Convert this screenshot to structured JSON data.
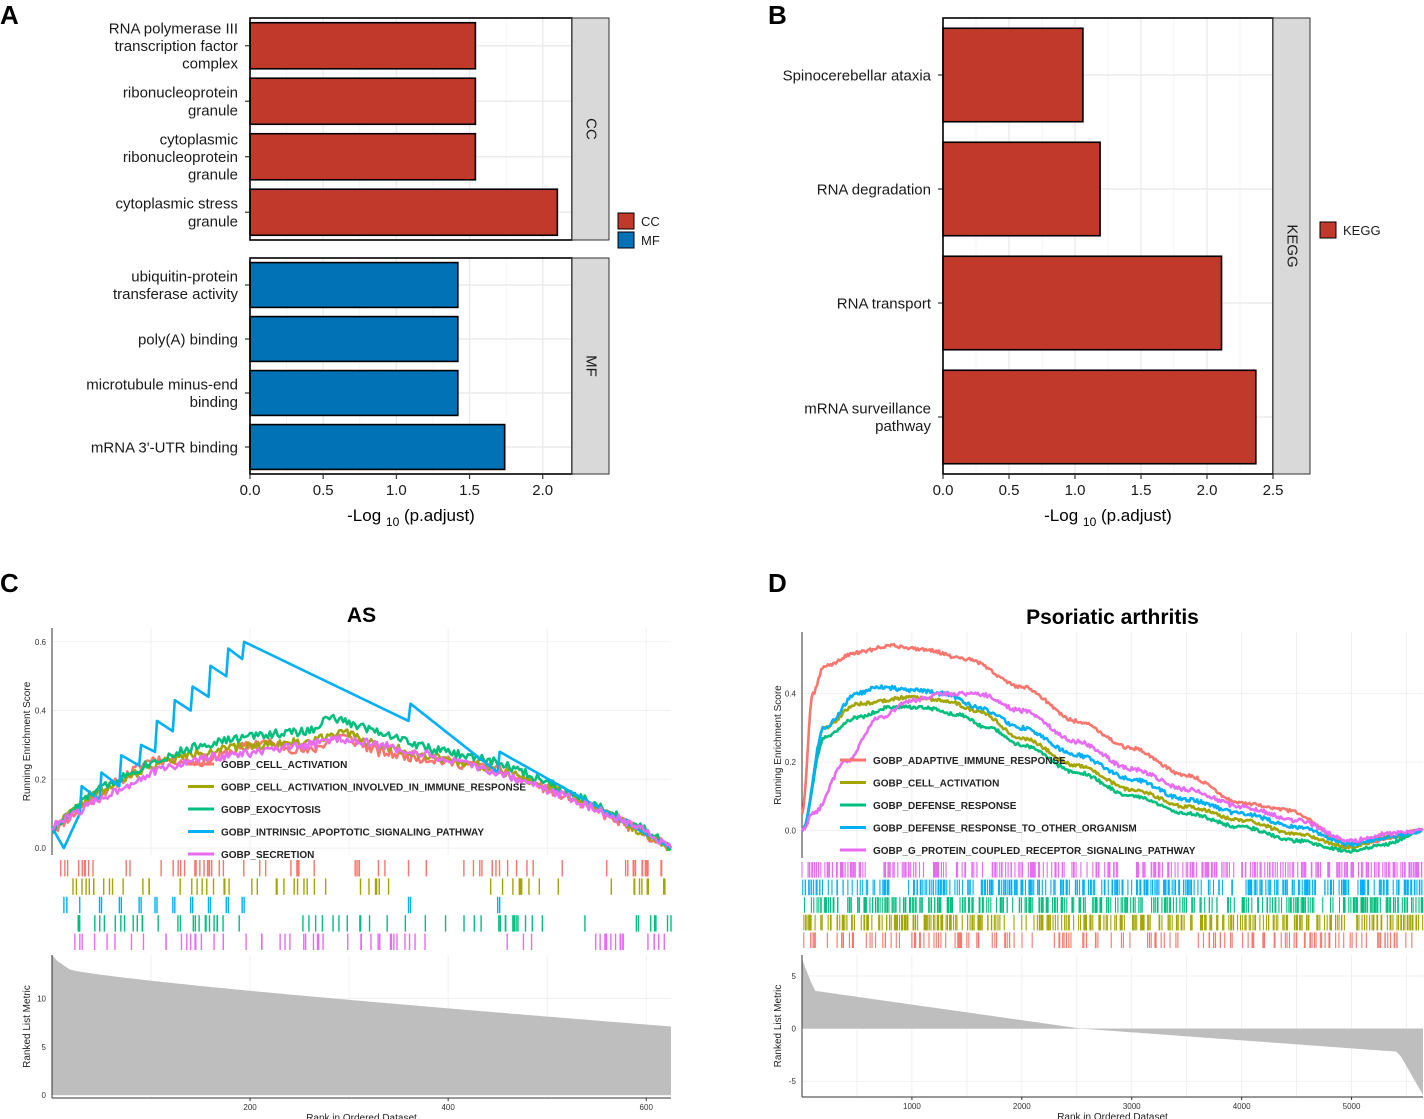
{
  "colors": {
    "bar_red": "#C0392B",
    "bar_blue": "#0072B5",
    "strip": "#D9D9D9",
    "grid": "#EBEBEB",
    "metric_fill": "#BEBEBE"
  },
  "panels": {
    "A": {
      "letter": "A"
    },
    "B": {
      "letter": "B"
    },
    "C": {
      "letter": "C"
    },
    "D": {
      "letter": "D"
    }
  },
  "chart_data": [
    {
      "id": "A",
      "type": "bar",
      "orientation": "horizontal",
      "facets": [
        {
          "name": "CC",
          "color_key": "bar_red",
          "categories": [
            "RNA polymerase III transcription factor complex",
            "ribonucleoprotein granule",
            "cytoplasmic ribonucleoprotein granule",
            "cytoplasmic stress granule"
          ],
          "values": [
            1.54,
            1.54,
            1.54,
            2.1
          ]
        },
        {
          "name": "MF",
          "color_key": "bar_blue",
          "categories": [
            "ubiquitin-protein transferase activity",
            "poly(A) binding",
            "microtubule minus-end binding",
            "mRNA 3'-UTR binding"
          ],
          "values": [
            1.42,
            1.42,
            1.42,
            1.74
          ]
        }
      ],
      "xlim": [
        0,
        2.2
      ],
      "xticks": [
        "0.0",
        "0.5",
        "1.0",
        "1.5",
        "2.0"
      ],
      "xlabel_pre": "-Log",
      "xlabel_sub": "10",
      "xlabel_post": "(p.adjust)",
      "legend": [
        {
          "label": "CC",
          "color_key": "bar_red"
        },
        {
          "label": "MF",
          "color_key": "bar_blue"
        }
      ]
    },
    {
      "id": "B",
      "type": "bar",
      "orientation": "horizontal",
      "facets": [
        {
          "name": "KEGG",
          "color_key": "bar_red",
          "categories": [
            "Spinocerebellar ataxia",
            "RNA degradation",
            "RNA transport",
            "mRNA surveillance pathway"
          ],
          "values": [
            1.06,
            1.19,
            2.11,
            2.37
          ]
        }
      ],
      "xlim": [
        0,
        2.5
      ],
      "xticks": [
        "0.0",
        "0.5",
        "1.0",
        "1.5",
        "2.0",
        "2.5"
      ],
      "xlabel_pre": "-Log",
      "xlabel_sub": "10",
      "xlabel_post": "(p.adjust)",
      "legend": [
        {
          "label": "KEGG",
          "color_key": "bar_red"
        }
      ]
    },
    {
      "id": "C",
      "type": "line",
      "title": "AS",
      "ylabel_top": "Running Enrichment Score",
      "ylabel_bottom": "Ranked List Metric",
      "xlabel": "Rank in Ordered Dataset",
      "xlim": [
        0,
        625
      ],
      "ylim_top": [
        -0.02,
        0.64
      ],
      "yticks_top": [
        "0.0",
        "0.2",
        "0.4",
        "0.6"
      ],
      "ylim_bottom": [
        -0.3,
        14.5
      ],
      "yticks_bottom": [
        "0",
        "5",
        "10"
      ],
      "xticks": [
        "200",
        "400",
        "600"
      ],
      "metric": {
        "start": 13.6,
        "end": 7.1
      },
      "series": [
        {
          "name": "GOBP_CELL_ACTIVATION",
          "color": "#F8766D"
        },
        {
          "name": "GOBP_CELL_ACTIVATION_INVOLVED_IN_IMMUNE_RESPONSE",
          "color": "#A3A500"
        },
        {
          "name": "GOBP_EXOCYTOSIS",
          "color": "#00BF7D"
        },
        {
          "name": "GOBP_INTRINSIC_APOPTOTIC_SIGNALING_PATHWAY",
          "color": "#00B0F6"
        },
        {
          "name": "GOBP_SECRETION",
          "color": "#E76BF3"
        }
      ]
    },
    {
      "id": "D",
      "type": "line",
      "title": "Psoriatic arthritis",
      "ylabel_top": "Running Enrichment Score",
      "ylabel_bottom": "Ranked List Metric",
      "xlabel": "Rank in Ordered Dataset",
      "xlim": [
        0,
        5650
      ],
      "ylim_top": [
        -0.08,
        0.58
      ],
      "yticks_top": [
        "0.0",
        "0.2",
        "0.4"
      ],
      "ylim_bottom": [
        -6.5,
        7
      ],
      "yticks_bottom": [
        "-5",
        "0",
        "5"
      ],
      "xticks": [
        "1000",
        "2000",
        "3000",
        "4000",
        "5000"
      ],
      "metric": {
        "start": 6.6,
        "end": -6.3
      },
      "series": [
        {
          "name": "GOBP_ADAPTIVE_IMMUNE_RESPONSE",
          "color": "#F8766D"
        },
        {
          "name": "GOBP_CELL_ACTIVATION",
          "color": "#A3A500"
        },
        {
          "name": "GOBP_DEFENSE_RESPONSE",
          "color": "#00BF7D"
        },
        {
          "name": "GOBP_DEFENSE_RESPONSE_TO_OTHER_ORGANISM",
          "color": "#00B0F6"
        },
        {
          "name": "GOBP_G_PROTEIN_COUPLED_RECEPTOR_SIGNALING_PATHWAY",
          "color": "#E76BF3"
        }
      ]
    }
  ]
}
